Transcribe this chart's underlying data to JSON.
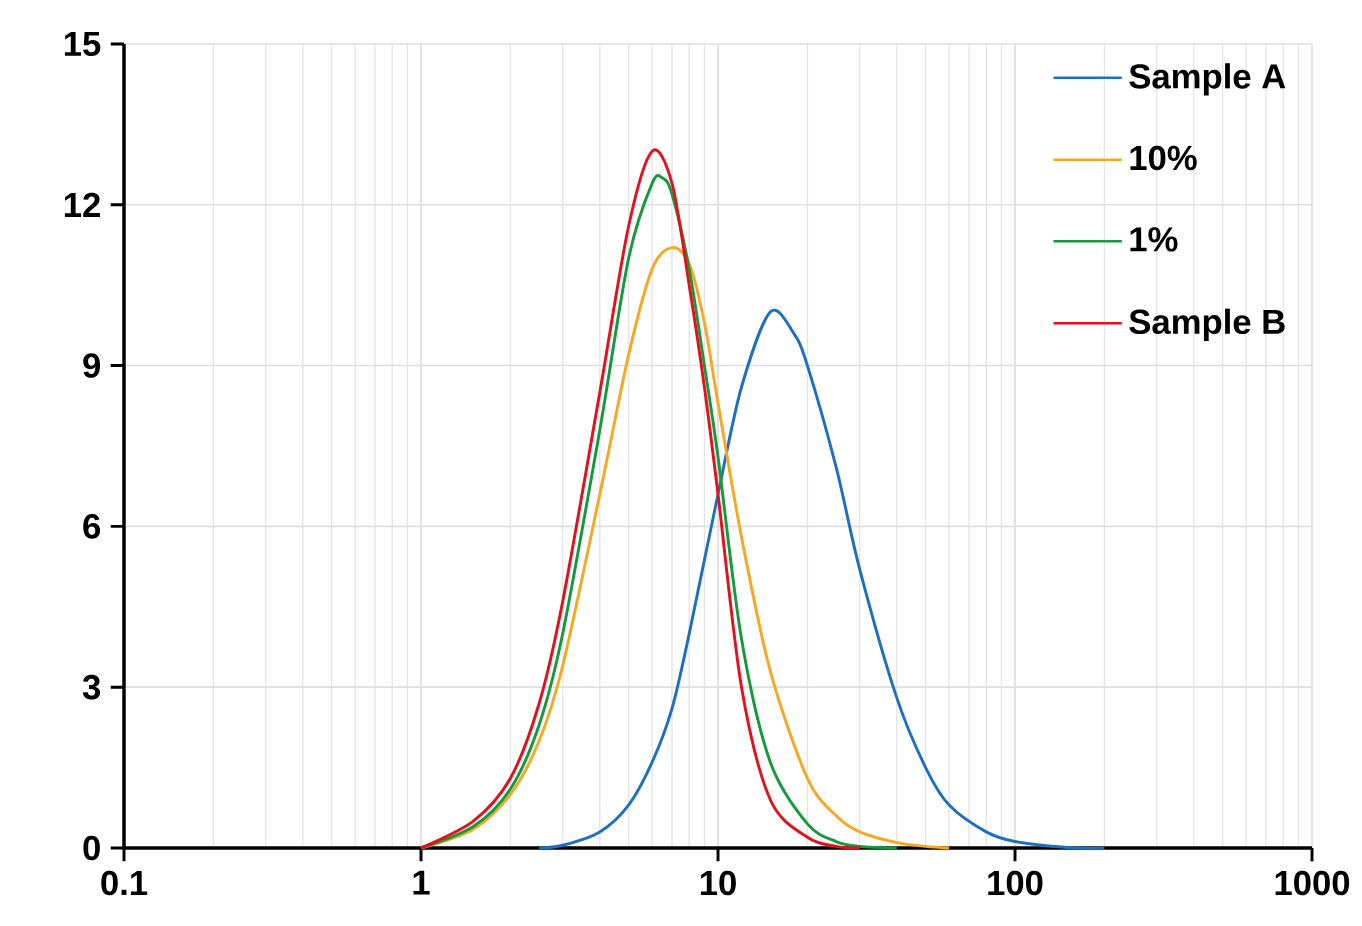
{
  "chart_data": {
    "type": "line",
    "log": "x",
    "xlim": [
      0.1,
      1000
    ],
    "ylim": [
      0,
      15
    ],
    "xticks": [
      0.1,
      1,
      10,
      100,
      1000
    ],
    "yticks": [
      0,
      3,
      6,
      9,
      12,
      15
    ],
    "grid": true,
    "legend": "top right",
    "series": [
      {
        "name": "Sample A",
        "color": "#1f6fbf",
        "x": [
          2.5,
          3,
          4,
          5,
          6,
          7,
          8,
          10,
          12,
          15,
          18,
          20,
          25,
          30,
          40,
          50,
          60,
          80,
          100,
          150,
          200
        ],
        "values": [
          0,
          0.05,
          0.3,
          0.8,
          1.6,
          2.6,
          4.0,
          6.6,
          8.6,
          10.0,
          9.6,
          9.0,
          7.1,
          5.2,
          2.8,
          1.5,
          0.8,
          0.3,
          0.12,
          0.01,
          0
        ]
      },
      {
        "name": "10%",
        "color": "#f7a823",
        "x": [
          1,
          1.5,
          2,
          2.5,
          3,
          4,
          5,
          6,
          7,
          8,
          9,
          10,
          12,
          15,
          20,
          25,
          30,
          40,
          50,
          60
        ],
        "values": [
          0,
          0.35,
          1.0,
          2.0,
          3.4,
          6.6,
          9.2,
          10.8,
          11.2,
          10.9,
          9.8,
          8.3,
          5.8,
          3.3,
          1.3,
          0.6,
          0.3,
          0.1,
          0.03,
          0
        ]
      },
      {
        "name": "1%",
        "color": "#149a3c",
        "x": [
          1,
          1.5,
          2,
          2.5,
          3,
          4,
          5,
          6,
          6.5,
          7,
          8,
          9,
          10,
          12,
          15,
          20,
          25,
          30,
          40
        ],
        "values": [
          0,
          0.4,
          1.1,
          2.3,
          4.0,
          7.8,
          11.0,
          12.4,
          12.5,
          12.2,
          10.8,
          9.0,
          7.3,
          3.9,
          1.6,
          0.45,
          0.12,
          0.03,
          0
        ]
      },
      {
        "name": "Sample B",
        "color": "#e3101e",
        "x": [
          1,
          1.5,
          2,
          2.5,
          3,
          4,
          5,
          6,
          7,
          8,
          9,
          10,
          12,
          15,
          20,
          25,
          30
        ],
        "values": [
          0,
          0.5,
          1.3,
          2.7,
          4.6,
          8.5,
          11.6,
          13.0,
          12.4,
          10.5,
          8.6,
          6.6,
          3.0,
          0.9,
          0.2,
          0.03,
          0
        ]
      }
    ]
  }
}
